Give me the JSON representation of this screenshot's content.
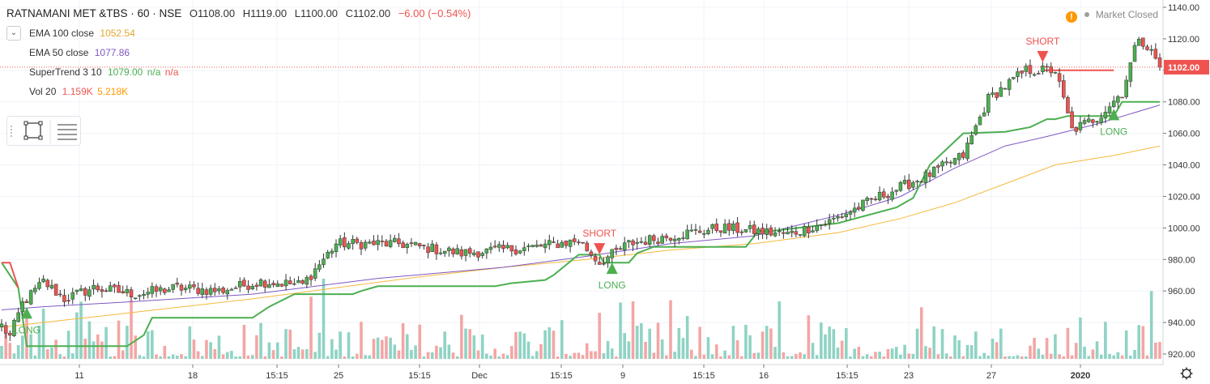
{
  "header": {
    "symbol": "RATNAMANI MET &TBS · 60 · NSE",
    "open": "O1108.00",
    "high": "H1119.00",
    "low": "L1100.00",
    "close": "C1102.00",
    "change": "−6.00 (−0.54%)"
  },
  "market_status": "Market Closed",
  "studies": {
    "ema100": {
      "label": "EMA 100 close",
      "value": "1052.54",
      "color": "#f6b93b"
    },
    "ema50": {
      "label": "EMA 50 close",
      "value": "1077.86",
      "color": "#7e57c2"
    },
    "supertrend": {
      "label": "SuperTrend 3 10",
      "value": "1079.00",
      "na1": "n/a",
      "na2": "n/a",
      "color": "#4caf50",
      "na_color": "#ef5350"
    },
    "volume": {
      "label": "Vol 20",
      "value": "1.159K",
      "ma": "5.218K",
      "color": "#ef5350",
      "ma_color": "#ff9800"
    }
  },
  "colors": {
    "up": "#4caf50",
    "down": "#ef5350",
    "vol_up": "#8fd3c4",
    "vol_down": "#f3a6a4",
    "price_line": "#ef5350"
  },
  "chart_data": {
    "type": "candlestick",
    "y_ticks": [
      "1140.00",
      "1120.00",
      "1100.00",
      "1080.00",
      "1060.00",
      "1040.00",
      "1020.00",
      "1000.00",
      "980.00",
      "960.00",
      "940.00",
      "920.00"
    ],
    "ylim": [
      915,
      1145
    ],
    "last_price": "1102.00",
    "x_ticks": [
      "11",
      "18",
      "15:15",
      "25",
      "15:15",
      "Dec",
      "15:15",
      "9",
      "15:15",
      "16",
      "15:15",
      "23",
      "27",
      "2020"
    ],
    "anchors": [
      [
        0,
        938
      ],
      [
        2,
        931
      ],
      [
        5,
        952
      ],
      [
        10,
        966
      ],
      [
        15,
        955
      ],
      [
        22,
        962
      ],
      [
        32,
        958
      ],
      [
        42,
        962
      ],
      [
        52,
        960
      ],
      [
        62,
        966
      ],
      [
        72,
        964
      ],
      [
        80,
        990
      ],
      [
        95,
        990
      ],
      [
        110,
        984
      ],
      [
        128,
        988
      ],
      [
        138,
        992
      ],
      [
        143,
        978
      ],
      [
        150,
        990
      ],
      [
        162,
        996
      ],
      [
        172,
        1000
      ],
      [
        180,
        998
      ],
      [
        188,
        996
      ],
      [
        198,
        1004
      ],
      [
        210,
        1020
      ],
      [
        222,
        1034
      ],
      [
        230,
        1046
      ],
      [
        236,
        1082
      ],
      [
        245,
        1100
      ],
      [
        252,
        1100
      ],
      [
        256,
        1062
      ],
      [
        262,
        1070
      ],
      [
        268,
        1086
      ],
      [
        272,
        1122
      ],
      [
        277,
        1104
      ]
    ],
    "supertrend": [
      [
        0,
        978
      ],
      [
        4,
        962
      ],
      [
        6,
        925
      ],
      [
        30,
        925
      ],
      [
        34,
        932
      ],
      [
        36,
        943
      ],
      [
        60,
        943
      ],
      [
        64,
        950
      ],
      [
        70,
        958
      ],
      [
        84,
        958
      ],
      [
        86,
        960
      ],
      [
        90,
        963
      ],
      [
        118,
        963
      ],
      [
        122,
        965
      ],
      [
        130,
        967
      ],
      [
        132,
        970
      ],
      [
        138,
        983
      ],
      [
        143,
        983
      ],
      [
        144,
        978
      ],
      [
        150,
        978
      ],
      [
        152,
        984
      ],
      [
        156,
        988
      ],
      [
        178,
        988
      ],
      [
        181,
        998
      ],
      [
        184,
        998
      ],
      [
        200,
        1003
      ],
      [
        214,
        1013
      ],
      [
        218,
        1019
      ],
      [
        222,
        1040
      ],
      [
        226,
        1050
      ],
      [
        230,
        1060
      ],
      [
        240,
        1061
      ],
      [
        246,
        1064
      ],
      [
        250,
        1069
      ],
      [
        252,
        1069
      ],
      [
        255,
        1071
      ],
      [
        266,
        1071
      ],
      [
        268,
        1080
      ],
      [
        277,
        1080
      ]
    ],
    "supertrend_red": [
      [
        0,
        978
      ],
      [
        2,
        978
      ],
      [
        4,
        962
      ]
    ],
    "short_line": [
      [
        249,
        1100
      ],
      [
        266,
        1100
      ]
    ],
    "ema50": [
      [
        0,
        948
      ],
      [
        10,
        950
      ],
      [
        30,
        953
      ],
      [
        60,
        958
      ],
      [
        90,
        968
      ],
      [
        120,
        975
      ],
      [
        140,
        982
      ],
      [
        160,
        990
      ],
      [
        180,
        995
      ],
      [
        200,
        1008
      ],
      [
        215,
        1020
      ],
      [
        228,
        1038
      ],
      [
        240,
        1052
      ],
      [
        250,
        1058
      ],
      [
        262,
        1066
      ],
      [
        277,
        1078
      ]
    ],
    "ema100": [
      [
        0,
        937
      ],
      [
        20,
        943
      ],
      [
        40,
        949
      ],
      [
        60,
        955
      ],
      [
        80,
        962
      ],
      [
        100,
        969
      ],
      [
        120,
        975
      ],
      [
        140,
        980
      ],
      [
        160,
        986
      ],
      [
        180,
        990
      ],
      [
        200,
        997
      ],
      [
        215,
        1006
      ],
      [
        228,
        1016
      ],
      [
        240,
        1028
      ],
      [
        252,
        1040
      ],
      [
        266,
        1046
      ],
      [
        277,
        1052
      ]
    ],
    "signals": [
      {
        "type": "LONG",
        "x": 6,
        "label": "LONG"
      },
      {
        "type": "SHORT",
        "x": 143,
        "label": "SHORT"
      },
      {
        "type": "LONG",
        "x": 146,
        "label": "LONG"
      },
      {
        "type": "SHORT",
        "x": 249,
        "label": "SHORT"
      },
      {
        "type": "LONG",
        "x": 266,
        "label": "LONG"
      }
    ]
  }
}
